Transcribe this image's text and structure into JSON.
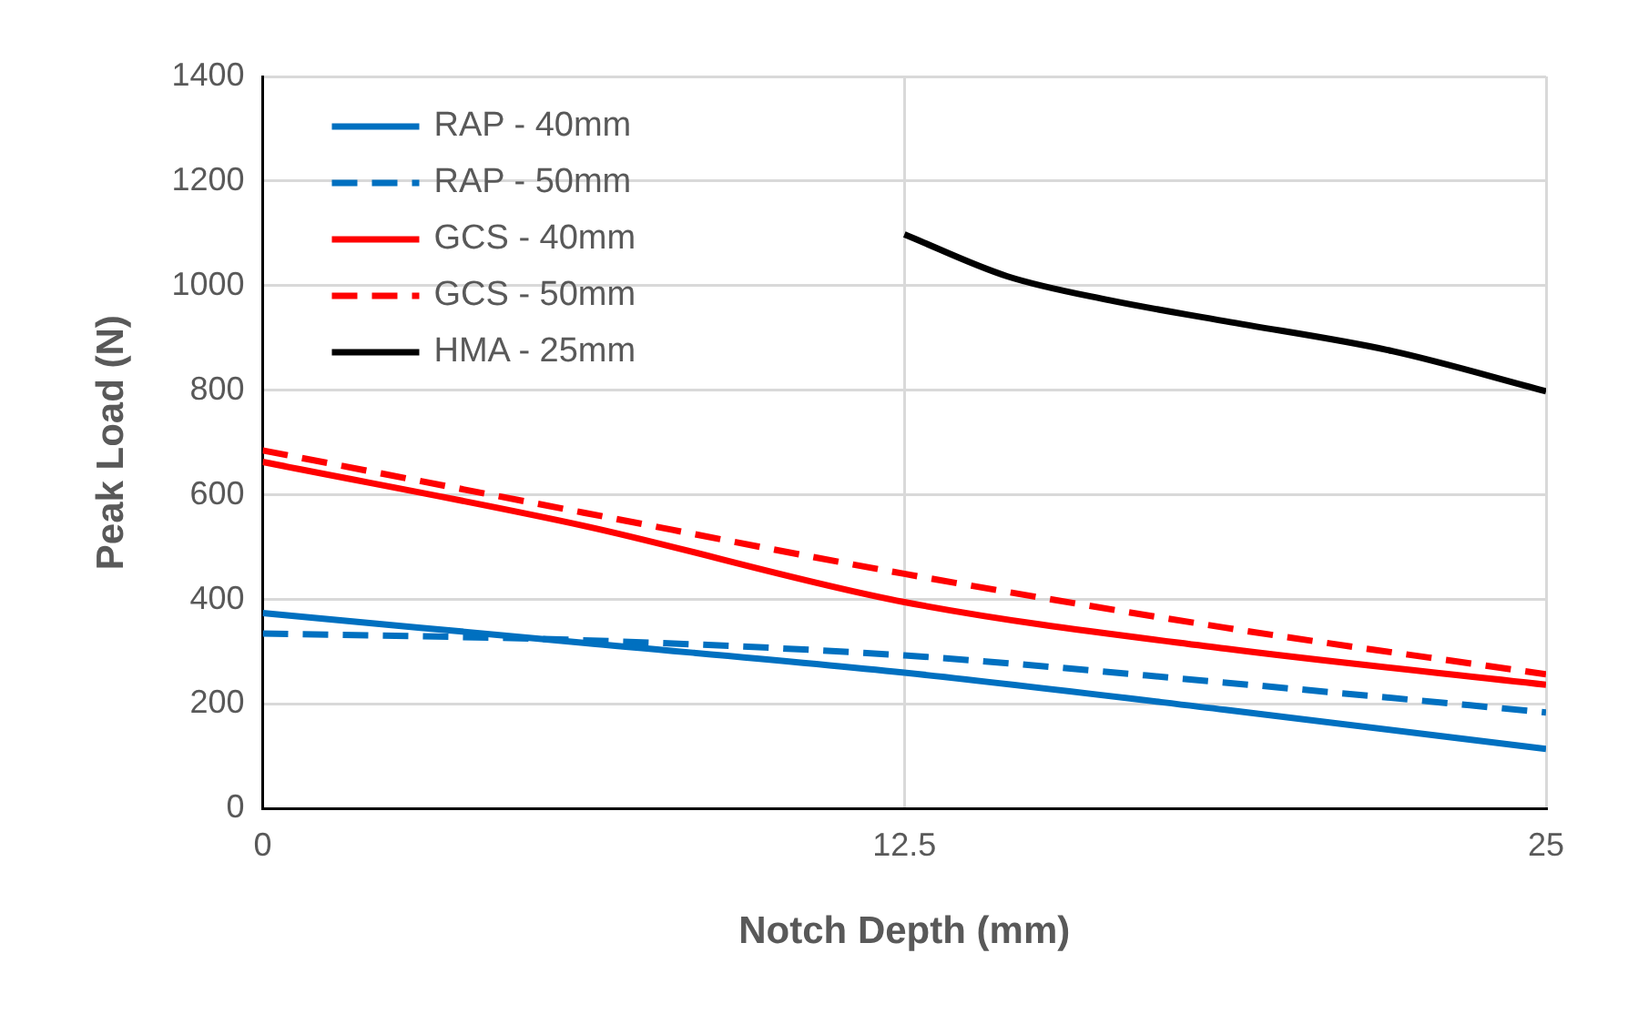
{
  "chart_data": {
    "type": "line",
    "xlabel": "Notch Depth (mm)",
    "ylabel": "Peak Load (N)",
    "xlim": [
      0,
      25
    ],
    "xticks": [
      0,
      12.5,
      25
    ],
    "ylim": [
      0,
      1400
    ],
    "yticks": [
      0,
      200,
      400,
      600,
      800,
      1000,
      1200,
      1400
    ],
    "grid": true,
    "legend": "top left",
    "marker": "none",
    "series": [
      {
        "name": "RAP - 40mm",
        "color": "#0070c0",
        "line_style": "solid",
        "x": [
          0,
          6.25,
          12.5,
          18.75,
          25
        ],
        "values": [
          374,
          317,
          260,
          189,
          114
        ]
      },
      {
        "name": "RAP - 50mm",
        "color": "#0070c0",
        "line_style": "dashed",
        "x": [
          0,
          6.25,
          12.5,
          18.75,
          25
        ],
        "values": [
          335,
          322,
          293,
          241,
          184
        ]
      },
      {
        "name": "GCS - 40mm",
        "color": "#ff0000",
        "line_style": "solid",
        "x": [
          0,
          6.25,
          12.5,
          18.75,
          25
        ],
        "values": [
          663,
          541,
          395,
          306,
          237
        ]
      },
      {
        "name": "GCS - 50mm",
        "color": "#ff0000",
        "line_style": "dashed",
        "x": [
          0,
          6.25,
          12.5,
          18.75,
          25
        ],
        "values": [
          685,
          566,
          449,
          346,
          257
        ]
      },
      {
        "name": "HMA - 25mm",
        "color": "#000000",
        "line_style": "solid",
        "x": [
          12.5,
          14.5,
          16.5,
          18.75,
          22,
          25
        ],
        "values": [
          1098,
          1018,
          972,
          932,
          875,
          798
        ]
      }
    ]
  }
}
